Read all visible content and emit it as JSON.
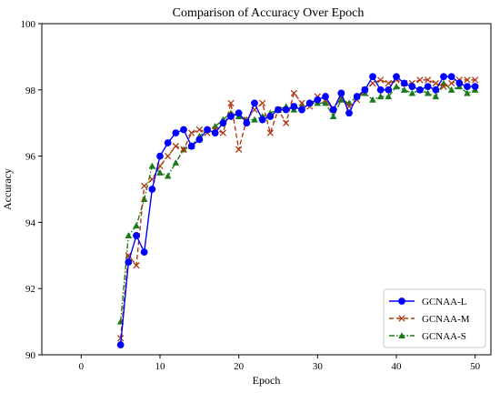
{
  "chart_data": {
    "type": "line",
    "title": "Comparison of Accuracy Over Epoch",
    "xlabel": "Epoch",
    "ylabel": "Accuracy",
    "xlim": [
      -5,
      52
    ],
    "ylim": [
      90,
      100
    ],
    "xticks": [
      0,
      10,
      20,
      30,
      40,
      50
    ],
    "yticks": [
      90,
      92,
      94,
      96,
      98,
      100
    ],
    "grid": false,
    "legend_position": "bottom-right",
    "series": [
      {
        "name": "GCNAA-L",
        "color": "#0000ff",
        "line_style": "solid",
        "marker": "circle",
        "x": [
          5,
          6,
          7,
          8,
          9,
          10,
          11,
          12,
          13,
          14,
          15,
          16,
          17,
          18,
          19,
          20,
          21,
          22,
          23,
          24,
          25,
          26,
          27,
          28,
          29,
          30,
          31,
          32,
          33,
          34,
          35,
          36,
          37,
          38,
          39,
          40,
          41,
          42,
          43,
          44,
          45,
          46,
          47,
          48,
          49,
          50
        ],
        "y": [
          90.3,
          92.8,
          93.6,
          93.1,
          95.0,
          96.0,
          96.4,
          96.7,
          96.8,
          96.3,
          96.5,
          96.8,
          96.7,
          97.0,
          97.2,
          97.3,
          97.0,
          97.6,
          97.1,
          97.2,
          97.4,
          97.4,
          97.5,
          97.4,
          97.6,
          97.7,
          97.8,
          97.4,
          97.9,
          97.3,
          97.8,
          98.0,
          98.4,
          98.0,
          98.0,
          98.4,
          98.2,
          98.1,
          98.0,
          98.1,
          98.0,
          98.4,
          98.4,
          98.2,
          98.1,
          98.1
        ]
      },
      {
        "name": "GCNAA-M",
        "color": "#b03a10",
        "line_style": "dashed",
        "marker": "x",
        "x": [
          5,
          6,
          7,
          8,
          9,
          10,
          11,
          12,
          13,
          14,
          15,
          16,
          17,
          18,
          19,
          20,
          21,
          22,
          23,
          24,
          25,
          26,
          27,
          28,
          29,
          30,
          31,
          32,
          33,
          34,
          35,
          36,
          37,
          38,
          39,
          40,
          41,
          42,
          43,
          44,
          45,
          46,
          47,
          48,
          49,
          50
        ],
        "y": [
          90.5,
          93.0,
          92.7,
          95.1,
          95.3,
          95.7,
          96.0,
          96.3,
          96.2,
          96.7,
          96.8,
          96.7,
          96.8,
          96.7,
          97.6,
          96.2,
          97.1,
          97.4,
          97.6,
          96.7,
          97.4,
          97.0,
          97.9,
          97.6,
          97.5,
          97.8,
          97.7,
          97.4,
          97.8,
          97.5,
          97.7,
          98.0,
          98.2,
          98.3,
          98.2,
          98.3,
          98.2,
          98.2,
          98.3,
          98.3,
          98.2,
          98.1,
          98.2,
          98.3,
          98.3,
          98.3
        ]
      },
      {
        "name": "GCNAA-S",
        "color": "#1b7a1b",
        "line_style": "dashdot",
        "marker": "triangle",
        "x": [
          5,
          6,
          7,
          8,
          9,
          10,
          11,
          12,
          13,
          14,
          15,
          16,
          17,
          18,
          19,
          20,
          21,
          22,
          23,
          24,
          25,
          26,
          27,
          28,
          29,
          30,
          31,
          32,
          33,
          34,
          35,
          36,
          37,
          38,
          39,
          40,
          41,
          42,
          43,
          44,
          45,
          46,
          47,
          48,
          49,
          50
        ],
        "y": [
          91.0,
          93.6,
          93.9,
          94.7,
          95.7,
          95.5,
          95.4,
          95.8,
          96.2,
          96.3,
          96.6,
          96.8,
          96.9,
          97.1,
          97.3,
          97.2,
          97.1,
          97.1,
          97.2,
          97.3,
          97.4,
          97.5,
          97.4,
          97.5,
          97.6,
          97.6,
          97.6,
          97.2,
          97.7,
          97.6,
          97.8,
          97.9,
          97.7,
          97.8,
          97.8,
          98.1,
          98.0,
          97.9,
          98.0,
          97.9,
          97.8,
          98.2,
          98.0,
          98.1,
          97.9,
          98.0
        ]
      }
    ]
  }
}
